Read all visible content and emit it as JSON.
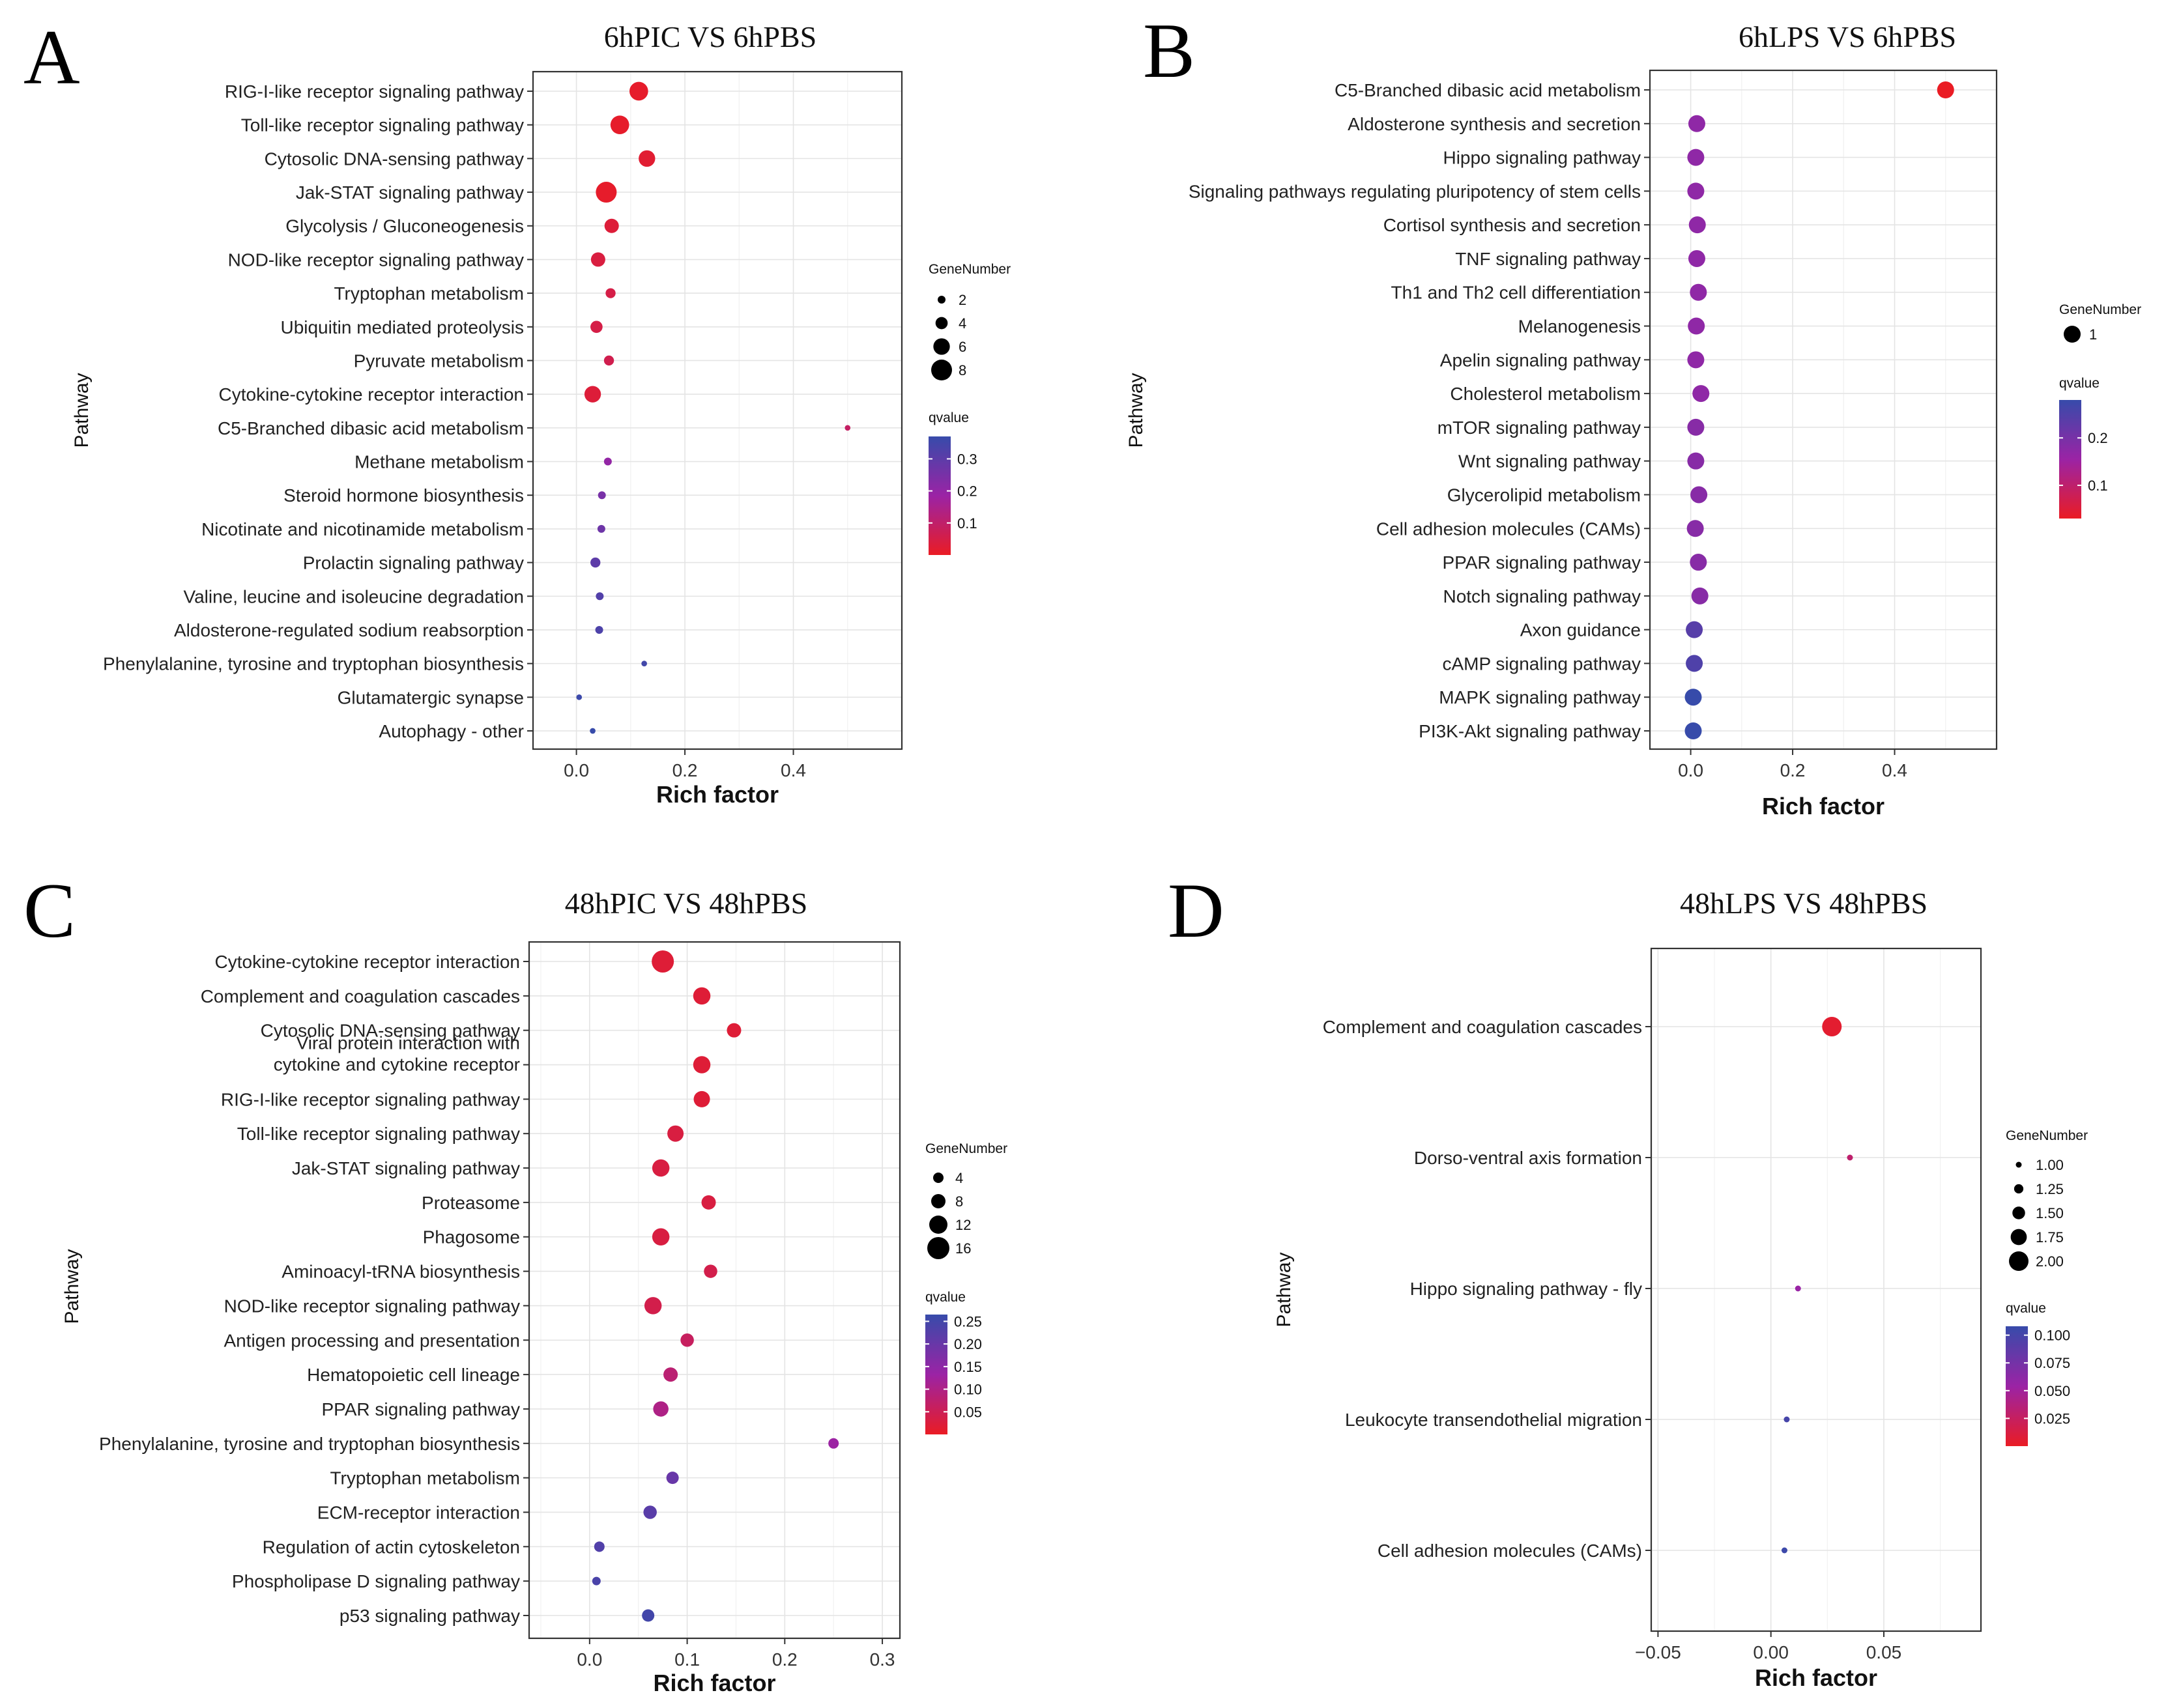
{
  "chart_data": [
    {
      "type": "scatter",
      "panel_letter": "A",
      "title": "6hPIC VS 6hPBS",
      "xlabel": "Rich factor",
      "ylabel": "Pathway",
      "xlim": [
        -0.08,
        0.6
      ],
      "xticks": [
        0.0,
        0.2,
        0.4
      ],
      "xtick_labels": [
        "0.0",
        "0.2",
        "0.4"
      ],
      "categories": [
        "RIG-I-like receptor signaling pathway",
        "Toll-like receptor signaling pathway",
        "Cytosolic DNA-sensing pathway",
        "Jak-STAT signaling pathway",
        "Glycolysis / Gluconeogenesis",
        "NOD-like receptor signaling pathway",
        "Tryptophan metabolism",
        "Ubiquitin mediated proteolysis",
        "Pyruvate metabolism",
        "Cytokine-cytokine receptor interaction",
        "C5-Branched dibasic acid metabolism",
        "Methane metabolism",
        "Steroid hormone biosynthesis",
        "Nicotinate and nicotinamide metabolism",
        "Prolactin signaling pathway",
        "Valine, leucine and isoleucine degradation",
        "Aldosterone-regulated sodium reabsorption",
        "Phenylalanine, tyrosine and tryptophan biosynthesis",
        "Glutamatergic synapse",
        "Autophagy - other"
      ],
      "rich_factor": [
        0.115,
        0.08,
        0.13,
        0.055,
        0.065,
        0.04,
        0.063,
        0.037,
        0.06,
        0.03,
        0.5,
        0.058,
        0.047,
        0.046,
        0.035,
        0.043,
        0.042,
        0.125,
        0.005,
        0.03
      ],
      "gene_number": [
        7,
        7,
        6,
        8,
        5,
        5,
        3,
        4,
        3,
        6,
        1,
        2,
        2,
        2,
        3,
        2,
        2,
        1,
        1,
        1
      ],
      "qvalue": [
        0.01,
        0.01,
        0.02,
        0.01,
        0.03,
        0.04,
        0.05,
        0.05,
        0.06,
        0.03,
        0.09,
        0.2,
        0.25,
        0.27,
        0.3,
        0.32,
        0.33,
        0.35,
        0.36,
        0.37
      ],
      "legend_size": {
        "title": "GeneNumber",
        "labels": [
          "2",
          "4",
          "6",
          "8"
        ],
        "values": [
          2,
          4,
          6,
          8
        ]
      },
      "legend_color": {
        "title": "qvalue",
        "tick_labels": [
          "0.3",
          "0.2",
          "0.1"
        ],
        "ticks": [
          0.3,
          0.2,
          0.1
        ],
        "range": [
          0.0,
          0.37
        ]
      }
    },
    {
      "type": "scatter",
      "panel_letter": "B",
      "title": "6hLPS VS 6hPBS",
      "xlabel": "Rich factor",
      "ylabel": "Pathway",
      "xlim": [
        -0.08,
        0.6
      ],
      "xticks": [
        0.0,
        0.2,
        0.4
      ],
      "xtick_labels": [
        "0.0",
        "0.2",
        "0.4"
      ],
      "categories": [
        "C5-Branched dibasic acid metabolism",
        "Aldosterone synthesis and secretion",
        "Hippo signaling pathway",
        "Signaling pathways regulating pluripotency of stem cells",
        "Cortisol synthesis and secretion",
        "TNF signaling pathway",
        "Th1 and Th2 cell differentiation",
        "Melanogenesis",
        "Apelin signaling pathway",
        "Cholesterol metabolism",
        "mTOR signaling pathway",
        "Wnt signaling pathway",
        "Glycerolipid metabolism",
        "Cell adhesion molecules (CAMs)",
        "PPAR signaling pathway",
        "Notch signaling pathway",
        "Axon guidance",
        "cAMP signaling pathway",
        "MAPK signaling pathway",
        "PI3K-Akt signaling pathway"
      ],
      "rich_factor": [
        0.5,
        0.012,
        0.01,
        0.01,
        0.013,
        0.012,
        0.015,
        0.011,
        0.01,
        0.02,
        0.01,
        0.01,
        0.016,
        0.009,
        0.015,
        0.018,
        0.007,
        0.007,
        0.005,
        0.005
      ],
      "gene_number": [
        1,
        1,
        1,
        1,
        1,
        1,
        1,
        1,
        1,
        1,
        1,
        1,
        1,
        1,
        1,
        1,
        1,
        1,
        1,
        1
      ],
      "qvalue": [
        0.03,
        0.17,
        0.17,
        0.17,
        0.17,
        0.17,
        0.17,
        0.17,
        0.17,
        0.17,
        0.18,
        0.18,
        0.18,
        0.18,
        0.18,
        0.18,
        0.24,
        0.25,
        0.28,
        0.28
      ],
      "legend_size": {
        "title": "GeneNumber",
        "labels": [
          "1"
        ],
        "values": [
          1
        ]
      },
      "legend_color": {
        "title": "qvalue",
        "tick_labels": [
          "0.2",
          "0.1"
        ],
        "ticks": [
          0.2,
          0.1
        ],
        "range": [
          0.03,
          0.28
        ]
      }
    },
    {
      "type": "scatter",
      "panel_letter": "C",
      "title": "48hPIC VS 48hPBS",
      "xlabel": "Rich factor",
      "ylabel": "Pathway",
      "xlim": [
        -0.062,
        0.318
      ],
      "xticks": [
        0.0,
        0.1,
        0.2,
        0.3
      ],
      "xtick_labels": [
        "0.0",
        "0.1",
        "0.2",
        "0.3"
      ],
      "categories": [
        "Cytokine-cytokine receptor interaction",
        "Complement and coagulation cascades",
        "Cytosolic DNA-sensing pathway",
        "Viral protein interaction with|cytokine and cytokine receptor",
        "RIG-I-like receptor signaling pathway",
        "Toll-like receptor signaling pathway",
        "Jak-STAT signaling pathway",
        "Proteasome",
        "Phagosome",
        "Aminoacyl-tRNA biosynthesis",
        "NOD-like receptor signaling pathway",
        "Antigen processing and presentation",
        "Hematopoietic cell lineage",
        "PPAR signaling pathway",
        "Phenylalanine, tyrosine and tryptophan biosynthesis",
        "Tryptophan metabolism",
        "ECM-receptor interaction",
        "Regulation of actin cytoskeleton",
        "Phospholipase D signaling pathway",
        "p53 signaling pathway"
      ],
      "rich_factor": [
        0.075,
        0.115,
        0.148,
        0.115,
        0.115,
        0.088,
        0.073,
        0.122,
        0.073,
        0.124,
        0.065,
        0.1,
        0.083,
        0.073,
        0.25,
        0.085,
        0.062,
        0.01,
        0.007,
        0.06
      ],
      "gene_number": [
        16,
        11,
        8,
        11,
        10,
        10,
        11,
        8,
        11,
        7,
        11,
        7,
        8,
        9,
        4,
        6,
        7,
        4,
        2,
        6
      ],
      "qvalue": [
        0.02,
        0.02,
        0.02,
        0.02,
        0.02,
        0.03,
        0.03,
        0.03,
        0.03,
        0.04,
        0.04,
        0.06,
        0.08,
        0.1,
        0.13,
        0.2,
        0.22,
        0.23,
        0.24,
        0.25
      ],
      "legend_size": {
        "title": "GeneNumber",
        "labels": [
          "4",
          "8",
          "12",
          "16"
        ],
        "values": [
          4,
          8,
          12,
          16
        ]
      },
      "legend_color": {
        "title": "qvalue",
        "tick_labels": [
          "0.25",
          "0.20",
          "0.15",
          "0.10",
          "0.05"
        ],
        "ticks": [
          0.25,
          0.2,
          0.15,
          0.1,
          0.05
        ],
        "range": [
          0.0,
          0.265
        ]
      }
    },
    {
      "type": "scatter",
      "panel_letter": "D",
      "title": "48hLPS VS 48hPBS",
      "xlabel": "Rich factor",
      "ylabel": "Pathway",
      "xlim": [
        -0.053,
        0.093
      ],
      "xticks": [
        -0.05,
        0.0,
        0.05
      ],
      "xtick_labels": [
        "−0.05",
        "0.00",
        "0.05"
      ],
      "categories": [
        "Complement and coagulation cascades",
        "Dorso-ventral axis formation",
        "Hippo signaling pathway - fly",
        "Leukocyte transendothelial migration",
        "Cell adhesion molecules (CAMs)"
      ],
      "rich_factor": [
        0.027,
        0.035,
        0.012,
        0.007,
        0.006
      ],
      "gene_number": [
        2,
        1,
        1,
        1,
        1
      ],
      "qvalue": [
        0.005,
        0.03,
        0.055,
        0.1,
        0.105
      ],
      "legend_size": {
        "title": "GeneNumber",
        "labels": [
          "1.00",
          "1.25",
          "1.50",
          "1.75",
          "2.00"
        ],
        "values": [
          1.0,
          1.25,
          1.5,
          1.75,
          2.0
        ]
      },
      "legend_color": {
        "title": "qvalue",
        "tick_labels": [
          "0.100",
          "0.075",
          "0.050",
          "0.025"
        ],
        "ticks": [
          0.1,
          0.075,
          0.05,
          0.025
        ],
        "range": [
          0.0,
          0.108
        ]
      }
    }
  ]
}
